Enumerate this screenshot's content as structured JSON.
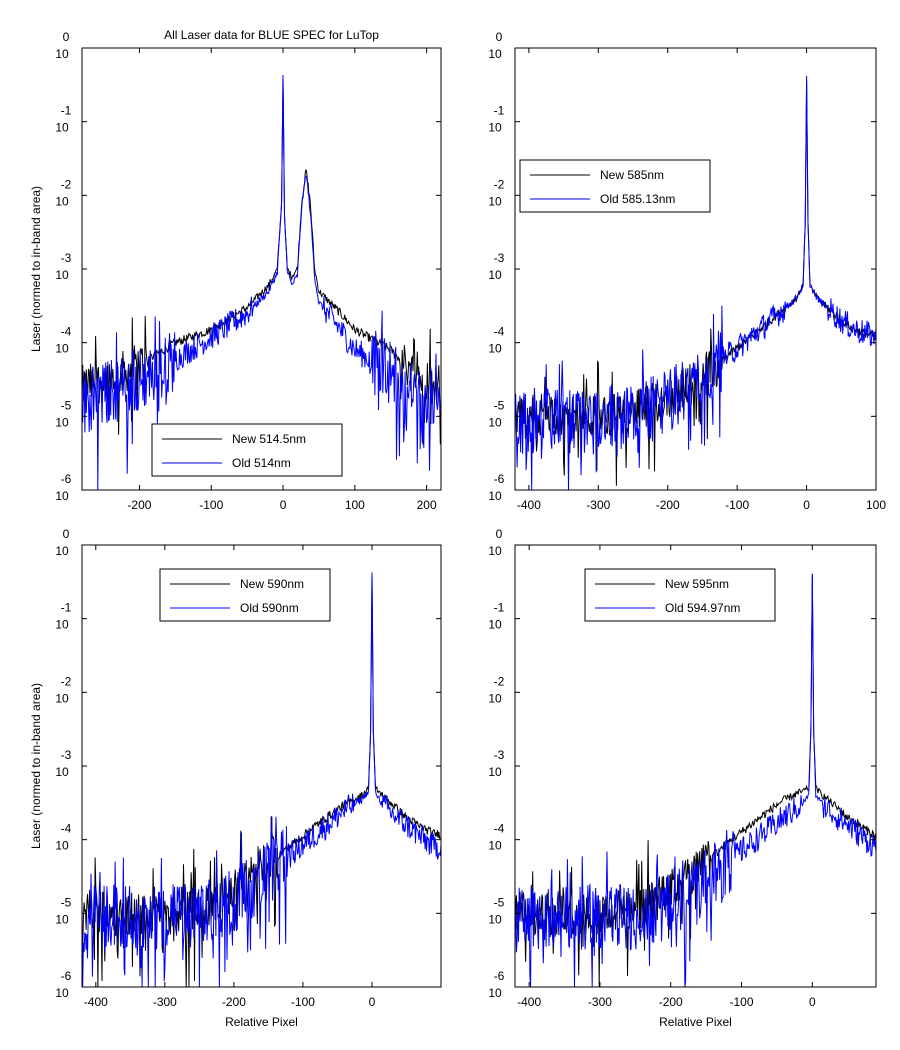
{
  "figure": {
    "title": "All Laser data for BLUE SPEC for LuTop",
    "ylabel": "Laser (normed to in-band area)",
    "xlabel": "Relative Pixel"
  },
  "colors": {
    "new": "#000000",
    "old": "#0000ff",
    "axes": "#000000",
    "background": "#ffffff"
  },
  "chart_data": [
    {
      "type": "line",
      "title": "All Laser data for BLUE SPEC for LuTop",
      "ylabel": "Laser (normed to in-band area)",
      "xlabel": "",
      "yscale": "log",
      "xlim": [
        -280,
        220
      ],
      "ylim": [
        1e-06,
        1
      ],
      "xticks": [
        -200,
        -100,
        0,
        100,
        200
      ],
      "yticks": [
        0,
        -1,
        -2,
        -3,
        -4,
        -5,
        -6
      ],
      "grid": false,
      "legend_position": "bottom-center",
      "series": [
        {
          "name": "New 514.5nm",
          "color": "#000000",
          "x": [
            -280,
            -250,
            -200,
            -150,
            -100,
            -50,
            -20,
            -8,
            -2,
            0,
            2,
            6,
            12,
            20,
            26,
            32,
            38,
            44,
            50,
            80,
            100,
            150,
            180,
            210,
            220
          ],
          "y": [
            2.5e-05,
            3e-05,
            5e-05,
            0.0001,
            0.00015,
            0.0003,
            0.0006,
            0.001,
            0.008,
            0.4,
            0.005,
            0.001,
            0.0008,
            0.001,
            0.008,
            0.022,
            0.008,
            0.001,
            0.0005,
            0.00025,
            0.00015,
            8e-05,
            4e-05,
            3e-05,
            2.5e-05
          ]
        },
        {
          "name": "Old 514nm",
          "color": "#0000ff",
          "x": [
            -280,
            -250,
            -200,
            -150,
            -100,
            -50,
            -20,
            -8,
            -2,
            0,
            2,
            6,
            12,
            20,
            26,
            32,
            38,
            44,
            50,
            80,
            100,
            150,
            180,
            210,
            220
          ],
          "y": [
            1.5e-05,
            2e-05,
            3e-05,
            6e-05,
            0.00012,
            0.00025,
            0.0005,
            0.0009,
            0.008,
            0.4,
            0.005,
            0.001,
            0.0006,
            0.0008,
            0.007,
            0.02,
            0.006,
            0.0008,
            0.00035,
            0.00015,
            8e-05,
            4e-05,
            2e-05,
            1.5e-05,
            1.2e-05
          ]
        }
      ]
    },
    {
      "type": "line",
      "title": "",
      "ylabel": "",
      "xlabel": "",
      "yscale": "log",
      "xlim": [
        -420,
        100
      ],
      "ylim": [
        1e-06,
        1
      ],
      "xticks": [
        -400,
        -300,
        -200,
        -100,
        0,
        100
      ],
      "yticks": [
        0,
        -1,
        -2,
        -3,
        -4,
        -5,
        -6
      ],
      "grid": false,
      "legend_position": "top-left",
      "series": [
        {
          "name": "New 585nm",
          "color": "#000000",
          "x": [
            -420,
            -380,
            -300,
            -240,
            -200,
            -160,
            -120,
            -80,
            -40,
            -15,
            -5,
            -2,
            0,
            2,
            5,
            15,
            30,
            50,
            70,
            100
          ],
          "y": [
            1e-05,
            1e-05,
            1e-05,
            1.2e-05,
            1.8e-05,
            3e-05,
            6e-05,
            0.00012,
            0.00025,
            0.0004,
            0.0006,
            0.004,
            0.4,
            0.004,
            0.0006,
            0.0004,
            0.0003,
            0.0002,
            0.00015,
            0.00012
          ]
        },
        {
          "name": "Old 585.13nm",
          "color": "#0000ff",
          "x": [
            -420,
            -380,
            -300,
            -240,
            -200,
            -160,
            -120,
            -80,
            -40,
            -15,
            -5,
            -2,
            0,
            2,
            5,
            15,
            30,
            50,
            70,
            100
          ],
          "y": [
            8e-06,
            9e-06,
            9e-06,
            1.1e-05,
            1.6e-05,
            3e-05,
            6e-05,
            0.00012,
            0.00025,
            0.0004,
            0.0006,
            0.004,
            0.4,
            0.004,
            0.0006,
            0.0004,
            0.0003,
            0.0002,
            0.00015,
            0.00012
          ]
        }
      ]
    },
    {
      "type": "line",
      "title": "",
      "ylabel": "Laser (normed to in-band area)",
      "xlabel": "Relative Pixel",
      "yscale": "log",
      "xlim": [
        -420,
        100
      ],
      "ylim": [
        1e-06,
        1
      ],
      "xticks": [
        -400,
        -300,
        -200,
        -100,
        0
      ],
      "yticks": [
        0,
        -1,
        -2,
        -3,
        -4,
        -5,
        -6
      ],
      "grid": false,
      "legend_position": "top-center",
      "series": [
        {
          "name": "New 590nm",
          "color": "#000000",
          "x": [
            -420,
            -380,
            -300,
            -240,
            -200,
            -160,
            -120,
            -80,
            -40,
            -15,
            -5,
            -2,
            0,
            2,
            5,
            15,
            30,
            50,
            70,
            90
          ],
          "y": [
            1e-05,
            1e-05,
            1e-05,
            1.2e-05,
            2e-05,
            4e-05,
            8e-05,
            0.00016,
            0.0003,
            0.0004,
            0.0005,
            0.003,
            0.4,
            0.003,
            0.0005,
            0.0004,
            0.0003,
            0.0002,
            0.00015,
            0.00012
          ]
        },
        {
          "name": "Old 590nm",
          "color": "#0000ff",
          "x": [
            -420,
            -380,
            -300,
            -240,
            -200,
            -160,
            -120,
            -80,
            -40,
            -15,
            -5,
            -2,
            0,
            2,
            5,
            15,
            30,
            50,
            70,
            90
          ],
          "y": [
            8e-06,
            9e-06,
            9e-06,
            1e-05,
            1.5e-05,
            3e-05,
            6e-05,
            0.00012,
            0.00025,
            0.00035,
            0.00045,
            0.003,
            0.4,
            0.003,
            0.00045,
            0.0003,
            0.00022,
            0.00016,
            0.00011,
            8e-05
          ]
        }
      ]
    },
    {
      "type": "line",
      "title": "",
      "ylabel": "",
      "xlabel": "Relative Pixel",
      "yscale": "log",
      "xlim": [
        -420,
        90
      ],
      "ylim": [
        1e-06,
        1
      ],
      "xticks": [
        -400,
        -300,
        -200,
        -100,
        0
      ],
      "yticks": [
        0,
        -1,
        -2,
        -3,
        -4,
        -5,
        -6
      ],
      "grid": false,
      "legend_position": "top-center",
      "series": [
        {
          "name": "New 595nm",
          "color": "#000000",
          "x": [
            -420,
            -380,
            -300,
            -240,
            -200,
            -160,
            -120,
            -80,
            -40,
            -15,
            -5,
            -2,
            0,
            2,
            5,
            15,
            30,
            50,
            70,
            90
          ],
          "y": [
            1e-05,
            1e-05,
            1e-05,
            1.2e-05,
            2e-05,
            4e-05,
            9e-05,
            0.00018,
            0.00035,
            0.00045,
            0.0005,
            0.003,
            0.4,
            0.003,
            0.0005,
            0.0004,
            0.0003,
            0.0002,
            0.00015,
            0.00011
          ]
        },
        {
          "name": "Old 594.97nm",
          "color": "#0000ff",
          "x": [
            -420,
            -380,
            -300,
            -240,
            -200,
            -160,
            -120,
            -80,
            -40,
            -15,
            -5,
            -2,
            0,
            2,
            5,
            15,
            30,
            50,
            70,
            90
          ],
          "y": [
            8e-06,
            9e-06,
            9e-06,
            9e-06,
            1.2e-05,
            2.5e-05,
            5e-05,
            0.0001,
            0.0002,
            0.0003,
            0.0004,
            0.003,
            0.4,
            0.003,
            0.0004,
            0.0003,
            0.00022,
            0.00016,
            0.00011,
            8e-05
          ]
        }
      ]
    }
  ]
}
